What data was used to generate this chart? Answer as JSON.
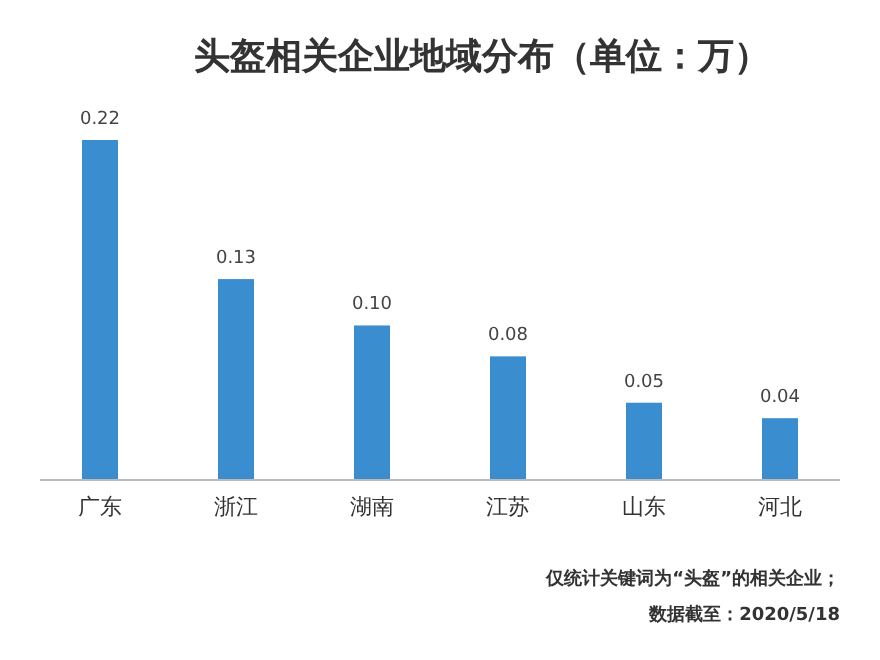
{
  "chart_data": {
    "type": "bar",
    "title": "头盔相关企业地域分布（单位：万）",
    "categories": [
      "广东",
      "浙江",
      "湖南",
      "江苏",
      "山东",
      "河北"
    ],
    "values": [
      0.22,
      0.13,
      0.1,
      0.08,
      0.05,
      0.04
    ],
    "value_labels": [
      "0.22",
      "0.13",
      "0.10",
      "0.08",
      "0.05",
      "0.04"
    ],
    "color": "#3a8ecf",
    "annotations": [
      "仅统计关键词为“头盔”的相关企业；",
      "数据截至：2020/5/18"
    ]
  }
}
